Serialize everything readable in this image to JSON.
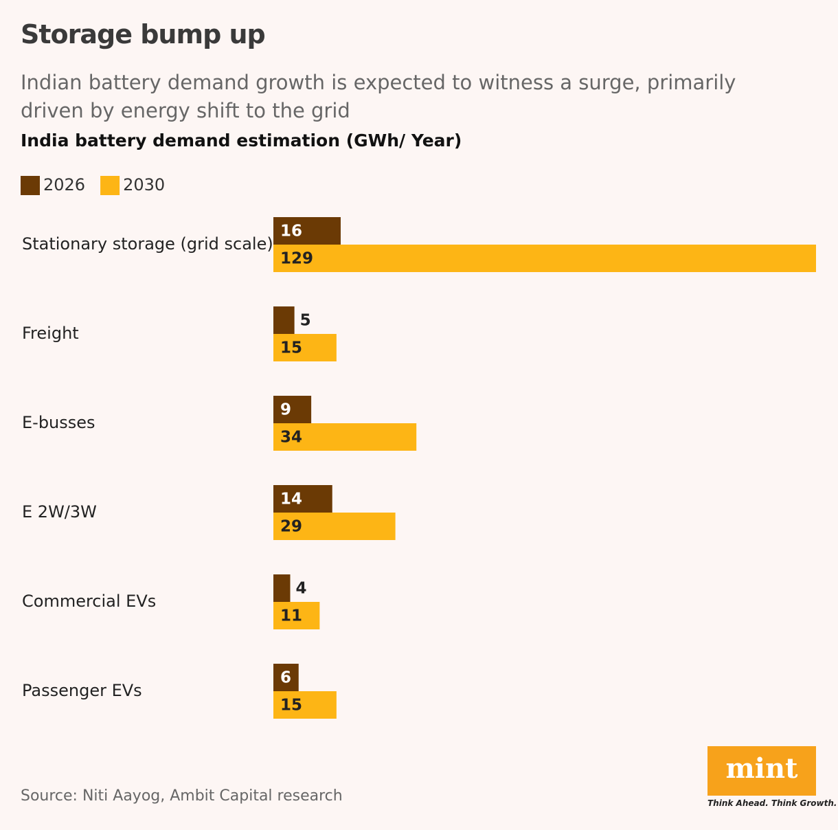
{
  "chart_data": {
    "type": "hbar",
    "title": "Storage bump up",
    "subtitle": "Indian battery demand growth is expected to witness a surge, primarily driven by energy shift to the grid",
    "chart_title": "India battery demand estimation (GWh/ Year)",
    "categories": [
      "Stationary storage (grid scale)",
      "Freight",
      "E-busses",
      "E 2W/3W",
      "Commercial EVs",
      "Passenger EVs"
    ],
    "series": [
      {
        "name": "2026",
        "color": "#6b3a05",
        "values": [
          16,
          5,
          9,
          14,
          4,
          6
        ]
      },
      {
        "name": "2030",
        "color": "#fdb515",
        "values": [
          129,
          15,
          34,
          29,
          11,
          15
        ]
      }
    ],
    "source": "Source: Niti Aayog, Ambit Capital research",
    "logo": "mint",
    "tagline": "Think Ahead. Think Growth."
  }
}
